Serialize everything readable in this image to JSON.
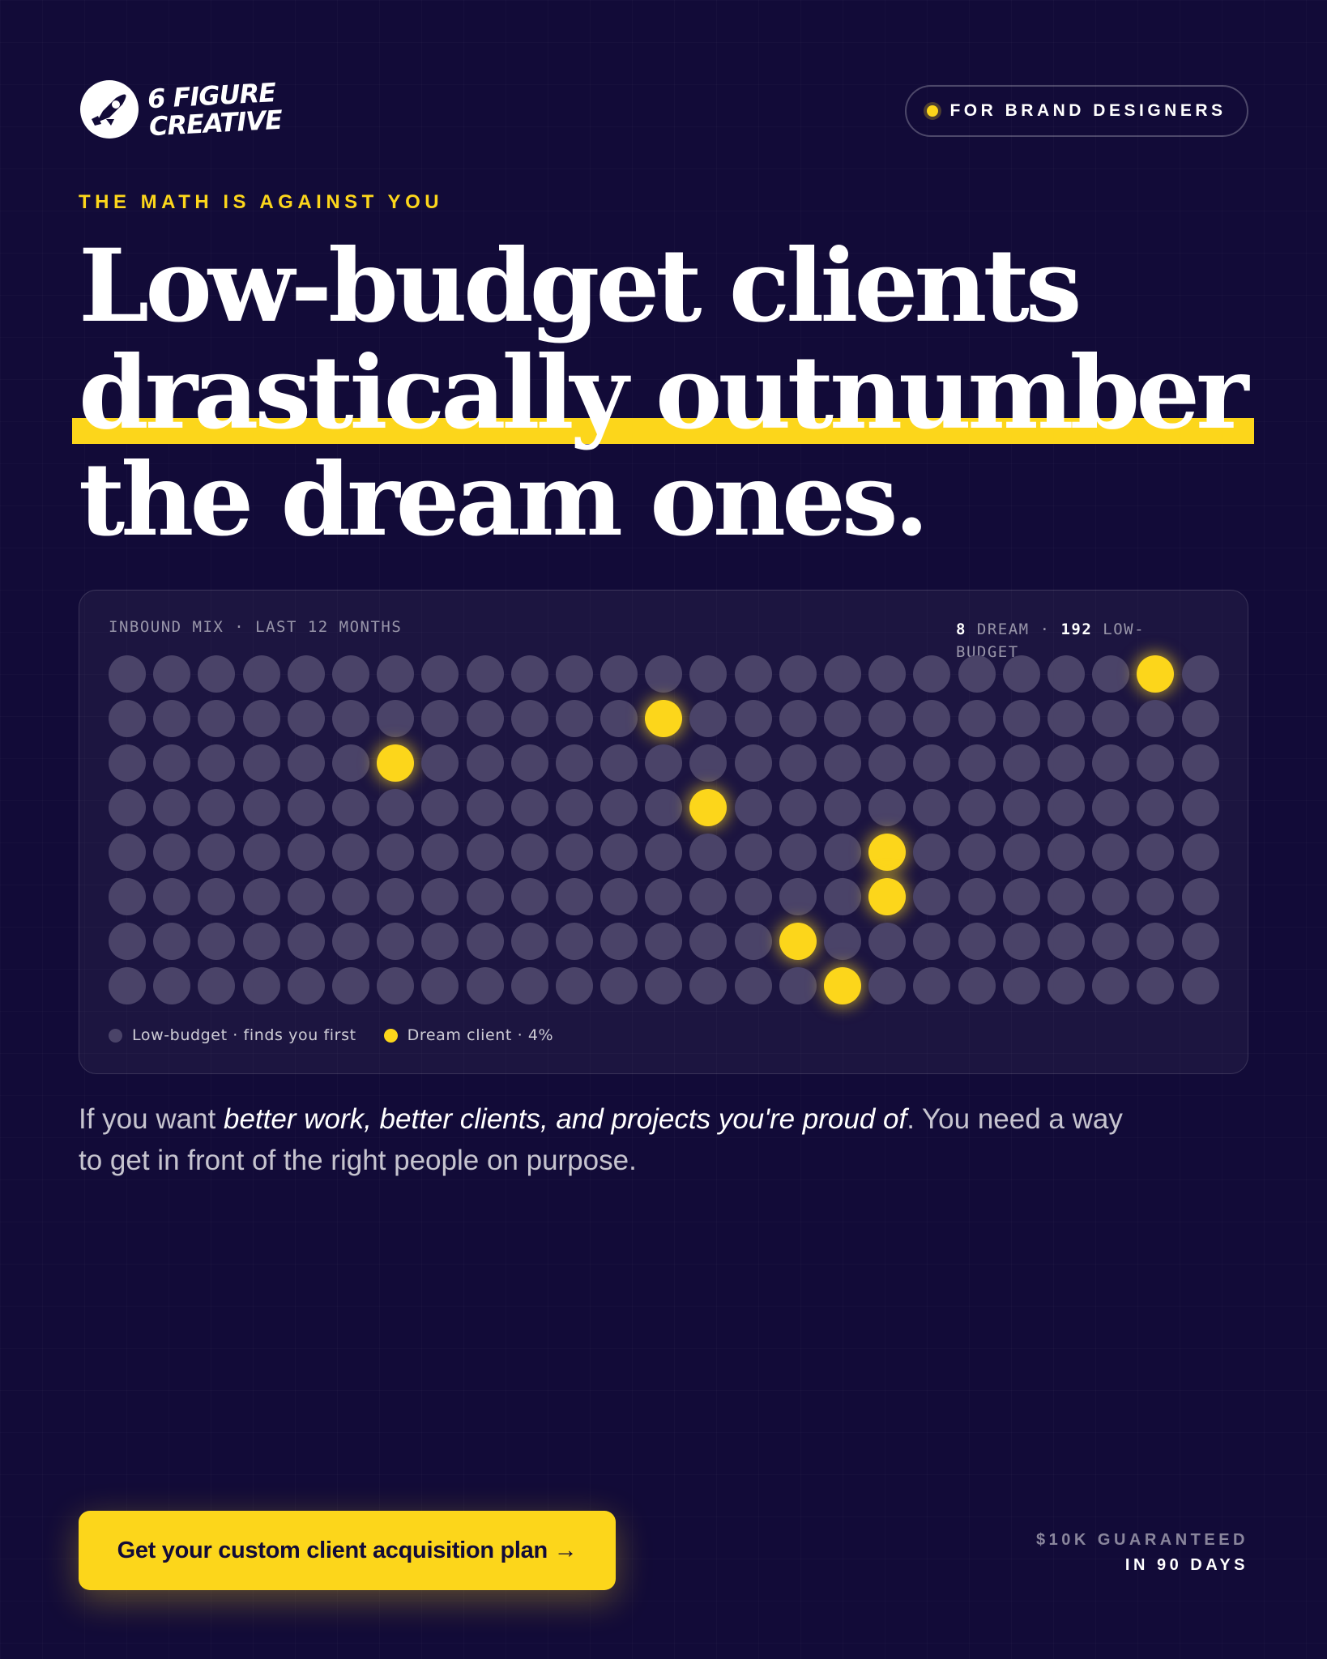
{
  "brand": {
    "logo_line1": "6 FIGURE",
    "logo_line2": "CREATIVE",
    "logo_icon": "rocket-icon"
  },
  "badge": {
    "label": "FOR BRAND DESIGNERS",
    "dot_color": "#fcd61b"
  },
  "eyebrow": "THE MATH IS AGAINST YOU",
  "headline": {
    "line1": "Low-budget clients",
    "line2_highlight": "drastically outnumber",
    "line3": "the dream ones."
  },
  "chart_data": {
    "type": "dot-matrix",
    "title": "INBOUND MIX · LAST 12 MONTHS",
    "stat": {
      "dream_count": "8",
      "dream_label": "DREAM",
      "separator": "·",
      "low_count": "192",
      "low_label": "LOW-BUDGET"
    },
    "rows": 8,
    "cols": 25,
    "dream_cells": [
      [
        0,
        23
      ],
      [
        1,
        12
      ],
      [
        2,
        6
      ],
      [
        3,
        13
      ],
      [
        4,
        17
      ],
      [
        5,
        17
      ],
      [
        6,
        15
      ],
      [
        7,
        16
      ]
    ],
    "legend": [
      {
        "label": "Low-budget · finds you first",
        "color": "#4a4368"
      },
      {
        "label": "Dream client · 4%",
        "color": "#fcd61b"
      }
    ]
  },
  "body": {
    "lead": "If you want ",
    "emphasis": "better work, better clients, and projects you're proud of",
    "rest": ". You need a way to get in front of the right people on purpose."
  },
  "cta": {
    "label": "Get your custom client acquisition plan →"
  },
  "guarantee": {
    "line1": "$10K GUARANTEED",
    "line2": "IN 90 DAYS"
  },
  "colors": {
    "background": "#120b38",
    "accent": "#fcd61b",
    "dot_low": "#4a4368"
  }
}
